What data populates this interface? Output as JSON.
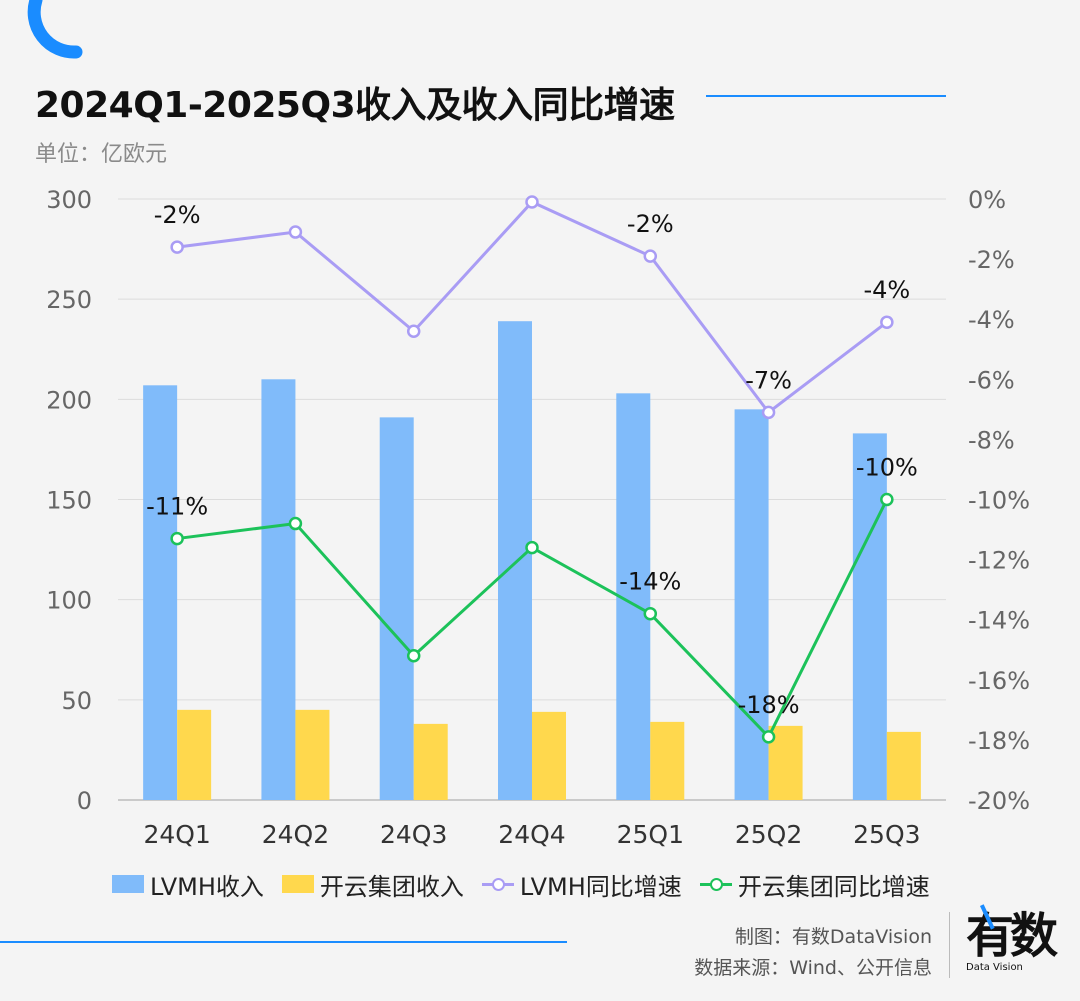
{
  "title": "2024Q1-2025Q3收入及收入同比增速",
  "unit_label": "单位：亿欧元",
  "colors": {
    "accent": "#1a8cff",
    "lvmh_bar": "#80bbfa",
    "kering_bar": "#ffd84d",
    "lvmh_line": "#a99cf4",
    "kering_line": "#1cc25a",
    "grid": "#dcdcdc"
  },
  "chart_data": {
    "type": "bar",
    "title": "2024Q1-2025Q3收入及收入同比增速",
    "categories": [
      "24Q1",
      "24Q2",
      "24Q3",
      "24Q4",
      "25Q1",
      "25Q2",
      "25Q3"
    ],
    "y_left": {
      "min": 0,
      "max": 300,
      "ticks": [
        0,
        50,
        100,
        150,
        200,
        250,
        300
      ]
    },
    "y_right": {
      "min": -20,
      "max": 0,
      "ticks": [
        0,
        -2,
        -4,
        -6,
        -8,
        -10,
        -12,
        -14,
        -16,
        -18,
        -20
      ],
      "tick_labels": [
        "0%",
        "-2%",
        "-4%",
        "-6%",
        "-8%",
        "-10%",
        "-12%",
        "-14%",
        "-16%",
        "-18%",
        "-20%"
      ]
    },
    "series": [
      {
        "name": "LVMH收入",
        "type": "bar",
        "axis": "left",
        "values": [
          207,
          210,
          191,
          239,
          203,
          195,
          183
        ]
      },
      {
        "name": "开云集团收入",
        "type": "bar",
        "axis": "left",
        "values": [
          45,
          45,
          38,
          44,
          39,
          37,
          34
        ]
      },
      {
        "name": "LVMH同比增速",
        "type": "line",
        "axis": "right",
        "values": [
          -1.6,
          -1.1,
          -4.4,
          -0.1,
          -1.9,
          -7.1,
          -4.1
        ],
        "labels": [
          "-2%",
          null,
          null,
          null,
          "-2%",
          "-7%",
          "-4%"
        ]
      },
      {
        "name": "开云集团同比增速",
        "type": "line",
        "axis": "right",
        "values": [
          -11.3,
          -10.8,
          -15.2,
          -11.6,
          -13.8,
          -17.9,
          -10.0
        ],
        "labels": [
          "-11%",
          null,
          null,
          null,
          "-14%",
          "-18%",
          "-10%"
        ]
      }
    ]
  },
  "legend": {
    "lvmh_revenue": "LVMH收入",
    "kering_revenue": "开云集团收入",
    "lvmh_growth": "LVMH同比增速",
    "kering_growth": "开云集团同比增速"
  },
  "credits": {
    "made_by": "制图：有数DataVision",
    "source": "数据来源：Wind、公开信息"
  },
  "logo": {
    "cn": "有数",
    "en": "Data Vision"
  }
}
